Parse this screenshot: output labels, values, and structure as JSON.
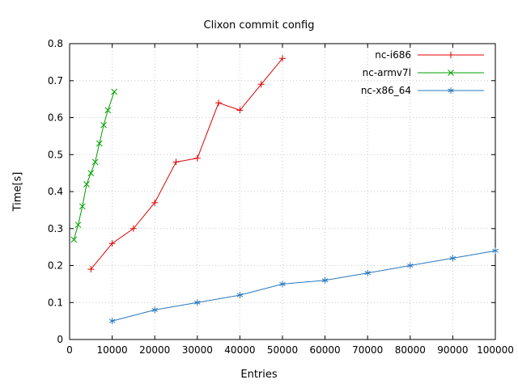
{
  "chart_data": {
    "type": "line",
    "title": "Clixon commit config",
    "xlabel": "Entries",
    "ylabel": "Time[s]",
    "xlim": [
      0,
      100000
    ],
    "ylim": [
      0,
      0.8
    ],
    "grid": true,
    "legend_position": "top-right",
    "xticks": {
      "values": [
        0,
        10000,
        20000,
        30000,
        40000,
        50000,
        60000,
        70000,
        80000,
        90000,
        100000
      ],
      "labels": [
        "0",
        "10000",
        "20000",
        "30000",
        "40000",
        "50000",
        "60000",
        "70000",
        "80000",
        "90000",
        "100000"
      ]
    },
    "yticks": {
      "values": [
        0,
        0.1,
        0.2,
        0.3,
        0.4,
        0.5,
        0.6,
        0.7,
        0.8
      ],
      "labels": [
        "0",
        "0.1",
        "0.2",
        "0.3",
        "0.4",
        "0.5",
        "0.6",
        "0.7",
        "0.8"
      ]
    },
    "series": [
      {
        "name": "nc-i686",
        "color": "#e00000",
        "marker": "plus",
        "x": [
          5000,
          10000,
          15000,
          20000,
          25000,
          30000,
          35000,
          40000,
          45000,
          50000
        ],
        "y": [
          0.19,
          0.26,
          0.3,
          0.37,
          0.48,
          0.49,
          0.64,
          0.62,
          0.69,
          0.76
        ]
      },
      {
        "name": "nc-armv7l",
        "color": "#00a000",
        "marker": "cross",
        "x": [
          1000,
          2000,
          3000,
          4000,
          5000,
          6000,
          7000,
          8000,
          9000,
          10500
        ],
        "y": [
          0.27,
          0.31,
          0.36,
          0.42,
          0.45,
          0.48,
          0.53,
          0.58,
          0.62,
          0.67
        ]
      },
      {
        "name": "nc-x86_64",
        "color": "#2878bd",
        "marker": "asterisk",
        "x": [
          10000,
          20000,
          30000,
          40000,
          50000,
          60000,
          70000,
          80000,
          90000,
          100000
        ],
        "y": [
          0.05,
          0.08,
          0.1,
          0.12,
          0.15,
          0.16,
          0.18,
          0.2,
          0.22,
          0.24
        ]
      }
    ]
  },
  "colors": {
    "background": "#ffffff",
    "border": "#000000",
    "grid": "#c8c8c8",
    "text": "#000000"
  }
}
